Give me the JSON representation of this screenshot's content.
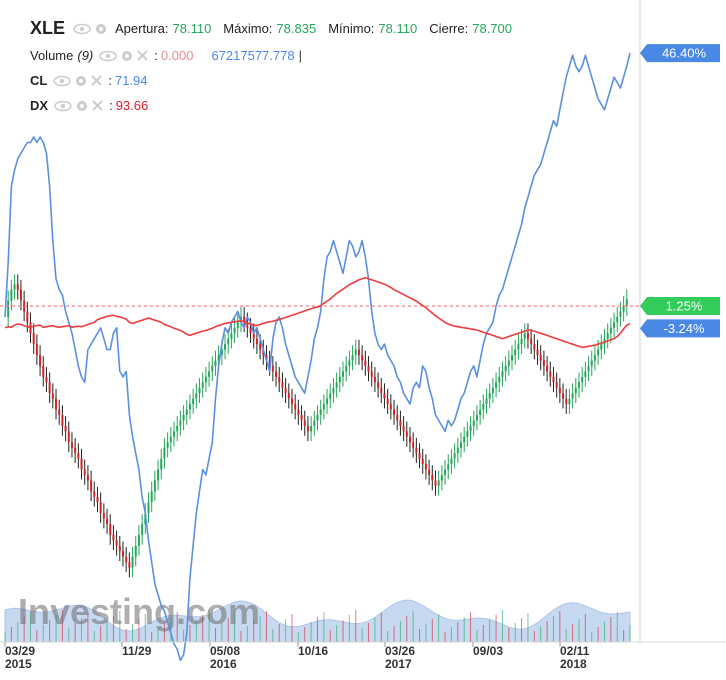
{
  "legend": {
    "symbol": "XLE",
    "open_label": "Apertura:",
    "open": "78.110",
    "high_label": "Máximo:",
    "high": "78.835",
    "low_label": "Mínimo:",
    "low": "78.110",
    "close_label": "Cierre:",
    "close": "78.700",
    "volume_label": "Volume",
    "volume_param": "(9)",
    "volume_value": "0.000",
    "volume_ma": "67217577.778",
    "volume_sep": "|",
    "cl_label": "CL",
    "cl_value": "71.94",
    "dx_label": "DX",
    "dx_value": "93.66",
    "colon": ":"
  },
  "watermark": "Investing.com",
  "colors": {
    "up": "#26a65b",
    "down": "#d91f26",
    "candle_wick": "#222222",
    "cl_line": "#5b8fe0",
    "dx_line": "#ee3b3b",
    "volume_area": "#9bbbe6",
    "price_tag": "#33cc5a",
    "cl_tag": "#4a88e6",
    "volume_value": "#e88c8c"
  },
  "chart_data": {
    "type": "line",
    "scale": "percent change",
    "x_ticks": [
      {
        "label": "03/29",
        "year": "2015"
      },
      {
        "label": "11/29",
        "year": ""
      },
      {
        "label": "05/08",
        "year": "2016"
      },
      {
        "label": "10/16",
        "year": ""
      },
      {
        "label": "03/26",
        "year": "2017"
      },
      {
        "label": "09/03",
        "year": ""
      },
      {
        "label": "02/11",
        "year": "2018"
      }
    ],
    "last_labels": {
      "cl": "46.40%",
      "xle": "1.25%",
      "dx": "-3.24%"
    },
    "series": [
      {
        "name": "CL",
        "values": [
          -2,
          8,
          22,
          25,
          27,
          28,
          29,
          30,
          30,
          31,
          30,
          31,
          30,
          28,
          22,
          12,
          5,
          3,
          2,
          -1,
          -3,
          -5,
          -8,
          -11,
          -13,
          -14,
          -8,
          -7,
          -6,
          -5,
          -4,
          -6,
          -8,
          -8,
          -5,
          -4,
          -12,
          -13,
          -12,
          -20,
          -24,
          -27,
          -30,
          -35,
          -38,
          -43,
          -47,
          -51,
          -53,
          -55,
          -56,
          -58,
          -60,
          -62,
          -63,
          -65,
          -64,
          -60,
          -50,
          -44,
          -38,
          -34,
          -30,
          -31,
          -28,
          -25,
          -17,
          -11,
          -7,
          -4,
          -5,
          -3,
          -2,
          -1,
          -3,
          -4,
          -2,
          -3,
          -5,
          -4,
          -6,
          -8,
          -10,
          -12,
          -6,
          -3,
          -2,
          -4,
          -7,
          -9,
          -11,
          -13,
          -14,
          -15,
          -16,
          -13,
          -10,
          -6,
          -4,
          -1,
          5,
          9,
          10,
          12,
          10,
          8,
          6,
          9,
          12,
          11,
          9,
          10,
          12,
          9,
          5,
          -1,
          -5,
          -7,
          -8,
          -7,
          -9,
          -10,
          -11,
          -13,
          -14,
          -16,
          -17,
          -18,
          -15,
          -14,
          -15,
          -11,
          -12,
          -15,
          -17,
          -20,
          -21,
          -22,
          -23,
          -21,
          -22,
          -21,
          -19,
          -17,
          -16,
          -14,
          -12,
          -11,
          -13,
          -10,
          -7,
          -5,
          -4,
          -3,
          0,
          2,
          3,
          5,
          7,
          9,
          11,
          13,
          15,
          18,
          20,
          22,
          24,
          25,
          26,
          28,
          30,
          32,
          34,
          33,
          36,
          39,
          42,
          44,
          46,
          44,
          43,
          44,
          46,
          44,
          42,
          40,
          38,
          37,
          36,
          38,
          40,
          42,
          41,
          40,
          42,
          44,
          46.4
        ]
      },
      {
        "name": "DX",
        "values": [
          -4,
          -3.8,
          -3.9,
          -3.5,
          -3.3,
          -3.4,
          -3.6,
          -3.8,
          -3.9,
          -3.7,
          -3.6,
          -3.5,
          -3.9,
          -3.8,
          -3.7,
          -3.6,
          -3.8,
          -3.9,
          -3.8,
          -3.7,
          -3.6,
          -3.9,
          -3.8,
          -3.7,
          -3.8,
          -3.6,
          -3.4,
          -3.2,
          -3.0,
          -2.5,
          -2.3,
          -2.1,
          -1.9,
          -1.8,
          -1.7,
          -1.9,
          -2.0,
          -2.2,
          -2.4,
          -3.0,
          -3.2,
          -3.0,
          -2.8,
          -2.6,
          -2.4,
          -2.2,
          -2.4,
          -2.6,
          -2.8,
          -3.0,
          -3.4,
          -3.6,
          -3.8,
          -4.1,
          -4.3,
          -4.5,
          -4.8,
          -5.2,
          -5.4,
          -5.2,
          -5.0,
          -4.8,
          -4.6,
          -4.5,
          -4.3,
          -4.1,
          -3.8,
          -3.6,
          -3.4,
          -3.2,
          -3.1,
          -3.0,
          -2.9,
          -2.8,
          -2.7,
          -2.9,
          -3.1,
          -3.3,
          -3.5,
          -3.6,
          -3.4,
          -3.2,
          -3.0,
          -2.9,
          -2.8,
          -2.6,
          -2.5,
          -2.3,
          -2.1,
          -1.9,
          -1.7,
          -1.5,
          -1.3,
          -1.1,
          -0.9,
          -0.7,
          -0.5,
          -0.3,
          -0.2,
          0.1,
          0.5,
          0.9,
          1.3,
          1.8,
          2.3,
          2.7,
          3.1,
          3.5,
          3.9,
          4.2,
          4.5,
          4.8,
          5.0,
          5.2,
          5.0,
          4.8,
          4.6,
          4.4,
          4.2,
          4.0,
          3.7,
          3.4,
          3.0,
          2.7,
          2.4,
          2.1,
          1.8,
          1.5,
          1.2,
          0.9,
          0.5,
          0.1,
          -0.3,
          -0.8,
          -1.3,
          -1.8,
          -2.2,
          -2.6,
          -3.0,
          -3.3,
          -3.5,
          -3.7,
          -3.8,
          -3.9,
          -4.0,
          -4.1,
          -4.2,
          -4.3,
          -4.4,
          -4.6,
          -4.8,
          -5.0,
          -5.2,
          -5.4,
          -5.6,
          -5.8,
          -6.0,
          -5.8,
          -5.6,
          -5.4,
          -5.2,
          -5.0,
          -4.8,
          -4.6,
          -4.4,
          -4.5,
          -4.6,
          -4.8,
          -5.0,
          -5.2,
          -5.4,
          -5.6,
          -5.8,
          -6.0,
          -6.2,
          -6.4,
          -6.6,
          -6.8,
          -7.0,
          -7.2,
          -7.4,
          -7.6,
          -7.5,
          -7.4,
          -7.3,
          -7.2,
          -7.0,
          -6.8,
          -6.6,
          -6.4,
          -6.2,
          -6.0,
          -5.6,
          -5.0,
          -4.2,
          -3.5,
          -3.24
        ]
      },
      {
        "name": "XLE",
        "values": [
          -2,
          1,
          3,
          4,
          3,
          1,
          -1,
          -3,
          -5,
          -7,
          -9,
          -11,
          -13,
          -14,
          -16,
          -17,
          -19,
          -20,
          -22,
          -23,
          -25,
          -26,
          -27,
          -28,
          -30,
          -31,
          -32,
          -34,
          -35,
          -36,
          -38,
          -39,
          -40,
          -42,
          -43,
          -44,
          -45,
          -46,
          -47,
          -48,
          -46,
          -44,
          -42,
          -40,
          -38,
          -36,
          -34,
          -32,
          -30,
          -28,
          -26,
          -25,
          -24,
          -23,
          -22,
          -21,
          -20,
          -19,
          -18,
          -17,
          -16,
          -15,
          -14,
          -13,
          -12,
          -11,
          -10,
          -9,
          -8,
          -7,
          -6,
          -5,
          -4,
          -3,
          -2,
          -3,
          -4,
          -5,
          -6,
          -7,
          -8,
          -9,
          -10,
          -11,
          -12,
          -13,
          -14,
          -15,
          -16,
          -17,
          -18,
          -19,
          -20,
          -21,
          -22,
          -23,
          -22,
          -21,
          -20,
          -19,
          -18,
          -17,
          -16,
          -15,
          -14,
          -13,
          -12,
          -11,
          -10,
          -9,
          -8,
          -9,
          -10,
          -11,
          -12,
          -13,
          -14,
          -15,
          -16,
          -17,
          -18,
          -19,
          -20,
          -21,
          -22,
          -23,
          -24,
          -25,
          -26,
          -27,
          -28,
          -29,
          -30,
          -31,
          -32,
          -33,
          -32,
          -31,
          -30,
          -29,
          -28,
          -27,
          -26,
          -25,
          -24,
          -23,
          -22,
          -21,
          -20,
          -19,
          -18,
          -17,
          -16,
          -15,
          -14,
          -13,
          -12,
          -11,
          -10,
          -9,
          -8,
          -7,
          -6,
          -5,
          -6,
          -7,
          -8,
          -9,
          -10,
          -11,
          -12,
          -13,
          -14,
          -15,
          -16,
          -17,
          -18,
          -17,
          -16,
          -15,
          -14,
          -13,
          -12,
          -11,
          -10,
          -9,
          -8,
          -7,
          -6,
          -5,
          -4,
          -3,
          -2,
          -1,
          0,
          1.25
        ]
      }
    ],
    "grid": false,
    "legend_position": "top-left"
  }
}
